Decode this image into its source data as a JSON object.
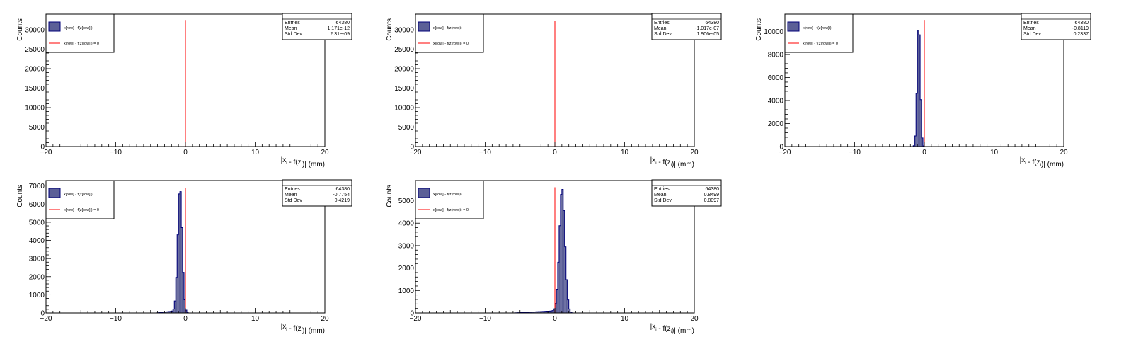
{
  "colors": {
    "hist_fill": "#5b5f97",
    "hist_line": "#00007a",
    "ref_line": "#ff0000",
    "axis": "#000000"
  },
  "chart_data": [
    {
      "type": "histogram",
      "xlabel": "|x_i - f(z_i)| (mm)",
      "ylabel": "Counts",
      "xlim": [
        -20,
        20
      ],
      "ylim": [
        0,
        34000
      ],
      "y_ticks": [
        0,
        5000,
        10000,
        15000,
        20000,
        25000,
        30000
      ],
      "x_ticks": [
        -20,
        -10,
        0,
        10,
        20
      ],
      "legend": {
        "entries": [
          "x[row] - f(z[row]i)",
          "x[row] - f(z[row]i) = 0"
        ],
        "placement": "top-left"
      },
      "stats": {
        "Entries": "64380",
        "Mean": "1.171e-12",
        "Std Dev": "2.31e-09"
      },
      "hist": {
        "center": 0.0,
        "sigma": 0.02,
        "peak": 32500
      },
      "ref_line": {
        "x": 0,
        "ymax": 32500
      }
    },
    {
      "type": "histogram",
      "xlabel": "|x_i - f(z_i)| (mm)",
      "ylabel": "Counts",
      "xlim": [
        -20,
        20
      ],
      "ylim": [
        0,
        34000
      ],
      "y_ticks": [
        0,
        5000,
        10000,
        15000,
        20000,
        25000,
        30000
      ],
      "x_ticks": [
        -20,
        -10,
        0,
        10,
        20
      ],
      "legend": {
        "entries": [
          "x[row] - f(z[row]i)",
          "x[row] - f(z[row]i) = 0"
        ],
        "placement": "top-left"
      },
      "stats": {
        "Entries": "64380",
        "Mean": "-1.017e-07",
        "Std Dev": "1.906e-05"
      },
      "hist": {
        "center": 0.0,
        "sigma": 0.02,
        "peak": 32200
      },
      "ref_line": {
        "x": 0,
        "ymax": 32200
      }
    },
    {
      "type": "histogram",
      "xlabel": "|x_i - f(z_i)| (mm)",
      "ylabel": "Counts",
      "xlim": [
        -20,
        20
      ],
      "ylim": [
        0,
        11500
      ],
      "y_ticks": [
        0,
        2000,
        4000,
        6000,
        8000,
        10000
      ],
      "x_ticks": [
        -20,
        -10,
        0,
        10,
        20
      ],
      "legend": {
        "entries": [
          "x[row] - f(z[row]i)",
          "x[row] - f(z[row]i) = 0"
        ],
        "placement": "top-left"
      },
      "stats": {
        "Entries": "64380",
        "Mean": "-0.8119",
        "Std Dev": "0.2337"
      },
      "hist": {
        "center": -0.81,
        "sigma": 0.22,
        "peak": 11000
      },
      "ref_line": {
        "x": 0,
        "ymax": 11000
      }
    },
    {
      "type": "histogram",
      "xlabel": "|x_i - f(z_i)| (mm)",
      "ylabel": "Counts",
      "xlim": [
        -20,
        20
      ],
      "ylim": [
        0,
        7300
      ],
      "y_ticks": [
        0,
        1000,
        2000,
        3000,
        4000,
        5000,
        6000,
        7000
      ],
      "x_ticks": [
        -20,
        -10,
        0,
        10,
        20
      ],
      "legend": {
        "entries": [
          "x[row] - f(z[row]i)",
          "x[row] - f(z[row]i) = 0"
        ],
        "placement": "top-left"
      },
      "stats": {
        "Entries": "64380",
        "Mean": "-0.7754",
        "Std Dev": "0.4219"
      },
      "hist": {
        "center": -0.78,
        "sigma": 0.32,
        "peak": 6900,
        "tail_left": 3.5
      },
      "ref_line": {
        "x": 0,
        "ymax": 6900
      }
    },
    {
      "type": "histogram",
      "xlabel": "|x_i - f(z_i)| (mm)",
      "ylabel": "Counts",
      "xlim": [
        -20,
        20
      ],
      "ylim": [
        0,
        5900
      ],
      "y_ticks": [
        0,
        1000,
        2000,
        3000,
        4000,
        5000
      ],
      "x_ticks": [
        -20,
        -10,
        0,
        10,
        20
      ],
      "legend": {
        "entries": [
          "x[row] - f(z[row]i)",
          "x[row] - f(z[row]i) = 0"
        ],
        "placement": "top-left"
      },
      "stats": {
        "Entries": "64380",
        "Mean": "0.8499",
        "Std Dev": "0.8097"
      },
      "hist": {
        "center": 1.05,
        "sigma": 0.4,
        "peak": 5550,
        "tail_left": 7.0
      },
      "ref_line": {
        "x": 0,
        "ymax": 5600
      }
    }
  ]
}
